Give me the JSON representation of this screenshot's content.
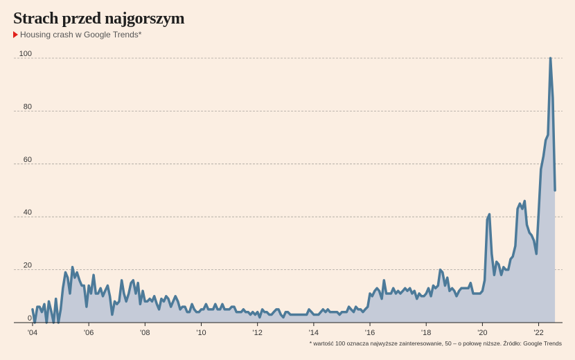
{
  "title": "Strach przed najgorszym",
  "subtitle": "Housing crash w Google Trends*",
  "footnote": "* wartość 100 oznacza najwyższe zainteresowanie, 50 – o połowę niższe. Źródło: Google Trends",
  "colors": {
    "line": "#4c7a99",
    "fill": "#c5cbd8",
    "accent": "#e0201b",
    "background": "#fbeee2"
  },
  "chart_data": {
    "type": "area",
    "title": "Strach przed najgorszym",
    "subtitle": "Housing crash w Google Trends*",
    "xlabel": "",
    "ylabel": "",
    "ylim": [
      0,
      100
    ],
    "y_ticks": [
      0,
      20,
      40,
      60,
      80,
      100
    ],
    "x_ticks": [
      {
        "value": 2004,
        "label": "'04"
      },
      {
        "value": 2006,
        "label": "'06"
      },
      {
        "value": 2008,
        "label": "'08"
      },
      {
        "value": 2010,
        "label": "'10"
      },
      {
        "value": 2012,
        "label": "'12"
      },
      {
        "value": 2014,
        "label": "'14"
      },
      {
        "value": 2016,
        "label": "'16"
      },
      {
        "value": 2018,
        "label": "'18"
      },
      {
        "value": 2020,
        "label": "'20"
      },
      {
        "value": 2022,
        "label": "'22"
      }
    ],
    "xlim": [
      2004,
      2022.75
    ],
    "grid": true,
    "series": [
      {
        "points": [
          [
            2004.0,
            5
          ],
          [
            2004.08,
            0
          ],
          [
            2004.17,
            6
          ],
          [
            2004.25,
            6
          ],
          [
            2004.33,
            4
          ],
          [
            2004.42,
            7
          ],
          [
            2004.5,
            0
          ],
          [
            2004.58,
            8
          ],
          [
            2004.67,
            4
          ],
          [
            2004.75,
            0
          ],
          [
            2004.83,
            9
          ],
          [
            2004.92,
            0
          ],
          [
            2005.0,
            5
          ],
          [
            2005.08,
            13
          ],
          [
            2005.17,
            19
          ],
          [
            2005.25,
            17
          ],
          [
            2005.33,
            11
          ],
          [
            2005.42,
            21
          ],
          [
            2005.5,
            17
          ],
          [
            2005.58,
            19
          ],
          [
            2005.67,
            16
          ],
          [
            2005.75,
            14
          ],
          [
            2005.83,
            14
          ],
          [
            2005.92,
            6
          ],
          [
            2006.0,
            14
          ],
          [
            2006.08,
            11
          ],
          [
            2006.17,
            18
          ],
          [
            2006.25,
            11
          ],
          [
            2006.33,
            11
          ],
          [
            2006.42,
            13
          ],
          [
            2006.5,
            10
          ],
          [
            2006.58,
            12
          ],
          [
            2006.67,
            14
          ],
          [
            2006.75,
            10
          ],
          [
            2006.83,
            3
          ],
          [
            2006.92,
            8
          ],
          [
            2007.0,
            7
          ],
          [
            2007.08,
            8
          ],
          [
            2007.17,
            16
          ],
          [
            2007.25,
            11
          ],
          [
            2007.33,
            8
          ],
          [
            2007.42,
            11
          ],
          [
            2007.5,
            15
          ],
          [
            2007.58,
            16
          ],
          [
            2007.67,
            11
          ],
          [
            2007.75,
            15
          ],
          [
            2007.83,
            7
          ],
          [
            2007.92,
            12
          ],
          [
            2008.0,
            8
          ],
          [
            2008.08,
            8
          ],
          [
            2008.17,
            9
          ],
          [
            2008.25,
            8
          ],
          [
            2008.33,
            10
          ],
          [
            2008.42,
            7
          ],
          [
            2008.5,
            5
          ],
          [
            2008.58,
            9
          ],
          [
            2008.67,
            8
          ],
          [
            2008.75,
            10
          ],
          [
            2008.83,
            9
          ],
          [
            2008.92,
            6
          ],
          [
            2009.0,
            8
          ],
          [
            2009.08,
            10
          ],
          [
            2009.17,
            8
          ],
          [
            2009.25,
            5
          ],
          [
            2009.33,
            6
          ],
          [
            2009.42,
            6
          ],
          [
            2009.5,
            4
          ],
          [
            2009.58,
            4
          ],
          [
            2009.67,
            7
          ],
          [
            2009.75,
            5
          ],
          [
            2009.83,
            4
          ],
          [
            2009.92,
            4
          ],
          [
            2010.0,
            5
          ],
          [
            2010.08,
            5
          ],
          [
            2010.17,
            7
          ],
          [
            2010.25,
            5
          ],
          [
            2010.33,
            5
          ],
          [
            2010.42,
            5
          ],
          [
            2010.5,
            7
          ],
          [
            2010.58,
            5
          ],
          [
            2010.67,
            5
          ],
          [
            2010.75,
            7
          ],
          [
            2010.83,
            5
          ],
          [
            2010.92,
            5
          ],
          [
            2011.0,
            5
          ],
          [
            2011.08,
            6
          ],
          [
            2011.17,
            6
          ],
          [
            2011.25,
            4
          ],
          [
            2011.33,
            4
          ],
          [
            2011.42,
            4
          ],
          [
            2011.5,
            5
          ],
          [
            2011.58,
            4
          ],
          [
            2011.67,
            4
          ],
          [
            2011.75,
            3
          ],
          [
            2011.83,
            4
          ],
          [
            2011.92,
            3
          ],
          [
            2012.0,
            4
          ],
          [
            2012.08,
            2
          ],
          [
            2012.17,
            5
          ],
          [
            2012.25,
            4
          ],
          [
            2012.33,
            4
          ],
          [
            2012.42,
            3
          ],
          [
            2012.5,
            3
          ],
          [
            2012.58,
            4
          ],
          [
            2012.67,
            5
          ],
          [
            2012.75,
            5
          ],
          [
            2012.83,
            3
          ],
          [
            2012.92,
            2
          ],
          [
            2013.0,
            4
          ],
          [
            2013.08,
            4
          ],
          [
            2013.17,
            3
          ],
          [
            2013.25,
            3
          ],
          [
            2013.33,
            3
          ],
          [
            2013.42,
            3
          ],
          [
            2013.5,
            3
          ],
          [
            2013.58,
            3
          ],
          [
            2013.67,
            3
          ],
          [
            2013.75,
            3
          ],
          [
            2013.83,
            5
          ],
          [
            2013.92,
            4
          ],
          [
            2014.0,
            3
          ],
          [
            2014.08,
            3
          ],
          [
            2014.17,
            3
          ],
          [
            2014.25,
            4
          ],
          [
            2014.33,
            5
          ],
          [
            2014.42,
            4
          ],
          [
            2014.5,
            5
          ],
          [
            2014.58,
            4
          ],
          [
            2014.67,
            4
          ],
          [
            2014.75,
            4
          ],
          [
            2014.83,
            4
          ],
          [
            2014.92,
            3
          ],
          [
            2015.0,
            4
          ],
          [
            2015.08,
            4
          ],
          [
            2015.17,
            4
          ],
          [
            2015.25,
            6
          ],
          [
            2015.33,
            5
          ],
          [
            2015.42,
            4
          ],
          [
            2015.5,
            6
          ],
          [
            2015.58,
            5
          ],
          [
            2015.67,
            5
          ],
          [
            2015.75,
            4
          ],
          [
            2015.83,
            5
          ],
          [
            2015.92,
            6
          ],
          [
            2016.0,
            11
          ],
          [
            2016.08,
            10
          ],
          [
            2016.17,
            12
          ],
          [
            2016.25,
            13
          ],
          [
            2016.33,
            12
          ],
          [
            2016.42,
            9
          ],
          [
            2016.5,
            16
          ],
          [
            2016.58,
            11
          ],
          [
            2016.67,
            11
          ],
          [
            2016.75,
            11
          ],
          [
            2016.83,
            13
          ],
          [
            2016.92,
            11
          ],
          [
            2017.0,
            12
          ],
          [
            2017.08,
            11
          ],
          [
            2017.17,
            12
          ],
          [
            2017.25,
            13
          ],
          [
            2017.33,
            12
          ],
          [
            2017.42,
            13
          ],
          [
            2017.5,
            11
          ],
          [
            2017.58,
            12
          ],
          [
            2017.67,
            9
          ],
          [
            2017.75,
            11
          ],
          [
            2017.83,
            10
          ],
          [
            2017.92,
            10
          ],
          [
            2018.0,
            11
          ],
          [
            2018.08,
            13
          ],
          [
            2018.17,
            10
          ],
          [
            2018.25,
            14
          ],
          [
            2018.33,
            13
          ],
          [
            2018.42,
            14
          ],
          [
            2018.5,
            20
          ],
          [
            2018.58,
            19
          ],
          [
            2018.67,
            14
          ],
          [
            2018.75,
            17
          ],
          [
            2018.83,
            12
          ],
          [
            2018.92,
            13
          ],
          [
            2019.0,
            12
          ],
          [
            2019.08,
            10
          ],
          [
            2019.17,
            12
          ],
          [
            2019.25,
            13
          ],
          [
            2019.33,
            13
          ],
          [
            2019.42,
            13
          ],
          [
            2019.5,
            13
          ],
          [
            2019.58,
            15
          ],
          [
            2019.67,
            11
          ],
          [
            2019.75,
            11
          ],
          [
            2019.83,
            11
          ],
          [
            2019.92,
            11
          ],
          [
            2020.0,
            12
          ],
          [
            2020.08,
            16
          ],
          [
            2020.17,
            39
          ],
          [
            2020.25,
            41
          ],
          [
            2020.33,
            26
          ],
          [
            2020.42,
            18
          ],
          [
            2020.5,
            23
          ],
          [
            2020.58,
            22
          ],
          [
            2020.67,
            18
          ],
          [
            2020.75,
            21
          ],
          [
            2020.83,
            20
          ],
          [
            2020.92,
            20
          ],
          [
            2021.0,
            24
          ],
          [
            2021.08,
            25
          ],
          [
            2021.17,
            29
          ],
          [
            2021.25,
            43
          ],
          [
            2021.33,
            45
          ],
          [
            2021.42,
            43
          ],
          [
            2021.5,
            46
          ],
          [
            2021.58,
            37
          ],
          [
            2021.67,
            34
          ],
          [
            2021.75,
            33
          ],
          [
            2021.83,
            31
          ],
          [
            2021.92,
            26
          ],
          [
            2022.0,
            42
          ],
          [
            2022.08,
            58
          ],
          [
            2022.17,
            63
          ],
          [
            2022.25,
            69
          ],
          [
            2022.33,
            71
          ],
          [
            2022.42,
            100
          ],
          [
            2022.5,
            85
          ],
          [
            2022.58,
            50
          ]
        ]
      }
    ]
  }
}
